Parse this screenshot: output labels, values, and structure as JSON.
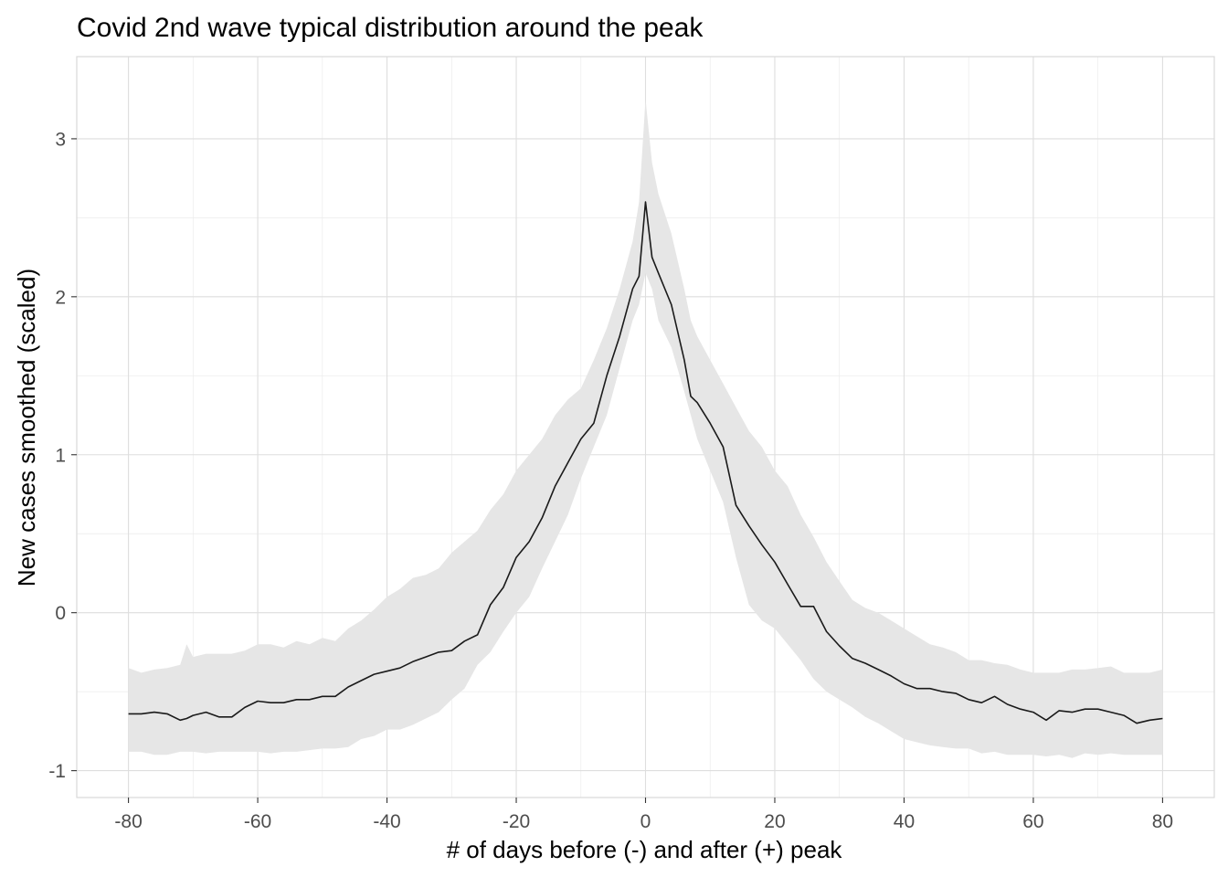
{
  "chart_data": {
    "type": "line",
    "title": "Covid 2nd wave typical distribution around the peak",
    "xlabel": "# of days before (-) and after (+) peak",
    "ylabel": "New cases smoothed (scaled)",
    "xlim": [
      -88,
      88
    ],
    "ylim": [
      -1.17,
      3.52
    ],
    "x_ticks": [
      -80,
      -60,
      -40,
      -20,
      0,
      20,
      40,
      60,
      80
    ],
    "x_tick_labels": [
      "-80",
      "-60",
      "-40",
      "-20",
      "0",
      "20",
      "40",
      "60",
      "80"
    ],
    "y_ticks": [
      -1,
      0,
      1,
      2,
      3
    ],
    "y_tick_labels": [
      "-1",
      "0",
      "1",
      "2",
      "3"
    ],
    "grid": true,
    "legend": "none",
    "colors": {
      "line": "#1a1a1a",
      "ribbon": "#e6e6e6",
      "grid": "#dedede"
    },
    "series": [
      {
        "x": [
          -80,
          -78,
          -76,
          -74,
          -72,
          -71,
          -70,
          -68,
          -66,
          -64,
          -62,
          -60,
          -58,
          -56,
          -54,
          -52,
          -50,
          -48,
          -46,
          -44,
          -42,
          -40,
          -38,
          -36,
          -34,
          -32,
          -30,
          -28,
          -26,
          -24,
          -22,
          -20,
          -18,
          -16,
          -14,
          -12,
          -10,
          -8,
          -6,
          -4,
          -2,
          -1,
          0,
          1,
          2,
          4,
          6,
          7,
          8,
          10,
          12,
          14,
          16,
          18,
          20,
          22,
          24,
          26,
          28,
          30,
          32,
          34,
          36,
          38,
          40,
          42,
          44,
          46,
          48,
          50,
          52,
          54,
          56,
          58,
          60,
          62,
          64,
          66,
          68,
          70,
          72,
          74,
          76,
          78,
          80
        ],
        "y": [
          -0.64,
          -0.64,
          -0.63,
          -0.64,
          -0.68,
          -0.67,
          -0.65,
          -0.63,
          -0.66,
          -0.66,
          -0.6,
          -0.56,
          -0.57,
          -0.57,
          -0.55,
          -0.55,
          -0.53,
          -0.53,
          -0.47,
          -0.43,
          -0.39,
          -0.37,
          -0.35,
          -0.31,
          -0.28,
          -0.25,
          -0.24,
          -0.18,
          -0.14,
          0.05,
          0.16,
          0.35,
          0.45,
          0.6,
          0.8,
          0.95,
          1.1,
          1.2,
          1.5,
          1.75,
          2.05,
          2.13,
          2.6,
          2.25,
          2.15,
          1.95,
          1.6,
          1.37,
          1.33,
          1.2,
          1.05,
          0.68,
          0.55,
          0.43,
          0.32,
          0.18,
          0.04,
          0.04,
          -0.12,
          -0.21,
          -0.29,
          -0.32,
          -0.36,
          -0.4,
          -0.45,
          -0.48,
          -0.48,
          -0.5,
          -0.51,
          -0.55,
          -0.57,
          -0.53,
          -0.58,
          -0.61,
          -0.63,
          -0.68,
          -0.62,
          -0.63,
          -0.61,
          -0.61,
          -0.63,
          -0.65,
          -0.7,
          -0.68,
          -0.67
        ]
      }
    ],
    "band": {
      "lower": [
        -0.88,
        -0.88,
        -0.9,
        -0.9,
        -0.88,
        -0.88,
        -0.88,
        -0.89,
        -0.88,
        -0.88,
        -0.88,
        -0.88,
        -0.89,
        -0.88,
        -0.88,
        -0.87,
        -0.86,
        -0.86,
        -0.85,
        -0.8,
        -0.78,
        -0.74,
        -0.74,
        -0.71,
        -0.67,
        -0.63,
        -0.55,
        -0.48,
        -0.33,
        -0.25,
        -0.12,
        0.0,
        0.1,
        0.28,
        0.45,
        0.62,
        0.85,
        1.05,
        1.25,
        1.55,
        1.85,
        1.95,
        2.15,
        2.05,
        1.85,
        1.68,
        1.4,
        1.25,
        1.1,
        0.9,
        0.7,
        0.35,
        0.05,
        -0.05,
        -0.1,
        -0.2,
        -0.3,
        -0.42,
        -0.5,
        -0.55,
        -0.6,
        -0.66,
        -0.7,
        -0.75,
        -0.8,
        -0.82,
        -0.84,
        -0.85,
        -0.86,
        -0.86,
        -0.89,
        -0.88,
        -0.9,
        -0.9,
        -0.9,
        -0.91,
        -0.9,
        -0.92,
        -0.89,
        -0.9,
        -0.89,
        -0.9,
        -0.9,
        -0.9,
        -0.9
      ],
      "upper": [
        -0.35,
        -0.38,
        -0.36,
        -0.35,
        -0.33,
        -0.2,
        -0.28,
        -0.26,
        -0.26,
        -0.26,
        -0.24,
        -0.2,
        -0.2,
        -0.22,
        -0.18,
        -0.2,
        -0.16,
        -0.18,
        -0.1,
        -0.05,
        0.02,
        0.1,
        0.15,
        0.22,
        0.24,
        0.28,
        0.38,
        0.45,
        0.52,
        0.65,
        0.75,
        0.9,
        1.0,
        1.1,
        1.25,
        1.35,
        1.42,
        1.6,
        1.8,
        2.05,
        2.35,
        2.6,
        3.25,
        2.85,
        2.65,
        2.4,
        2.05,
        1.85,
        1.75,
        1.6,
        1.45,
        1.3,
        1.15,
        1.05,
        0.9,
        0.8,
        0.62,
        0.48,
        0.32,
        0.2,
        0.08,
        0.03,
        0.0,
        -0.05,
        -0.1,
        -0.15,
        -0.2,
        -0.22,
        -0.25,
        -0.3,
        -0.3,
        -0.32,
        -0.33,
        -0.36,
        -0.38,
        -0.38,
        -0.38,
        -0.36,
        -0.36,
        -0.35,
        -0.34,
        -0.38,
        -0.38,
        -0.38,
        -0.36
      ]
    }
  }
}
